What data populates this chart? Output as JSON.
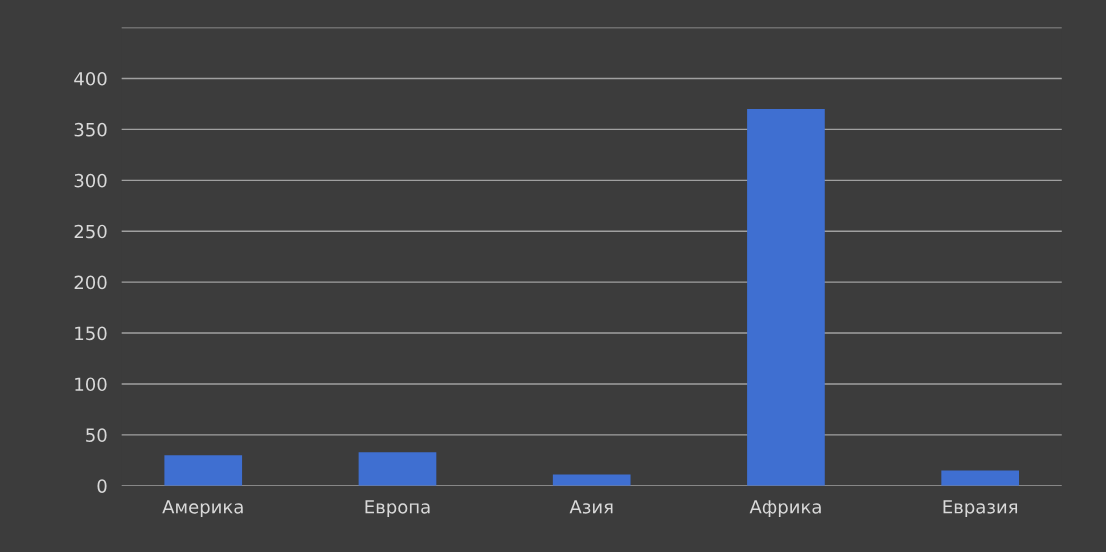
{
  "chart_data": {
    "type": "bar",
    "categories": [
      "Америка",
      "Европа",
      "Азия",
      "Африка",
      "Евразия"
    ],
    "values": [
      30,
      33,
      11,
      370,
      15
    ],
    "color": "#3f6fd1",
    "ylim": [
      0,
      450
    ],
    "yticks": [
      0,
      50,
      100,
      150,
      200,
      250,
      300,
      350,
      400,
      {
        "value": 450,
        "label": null
      }
    ],
    "grid": "y",
    "legend": false
  }
}
